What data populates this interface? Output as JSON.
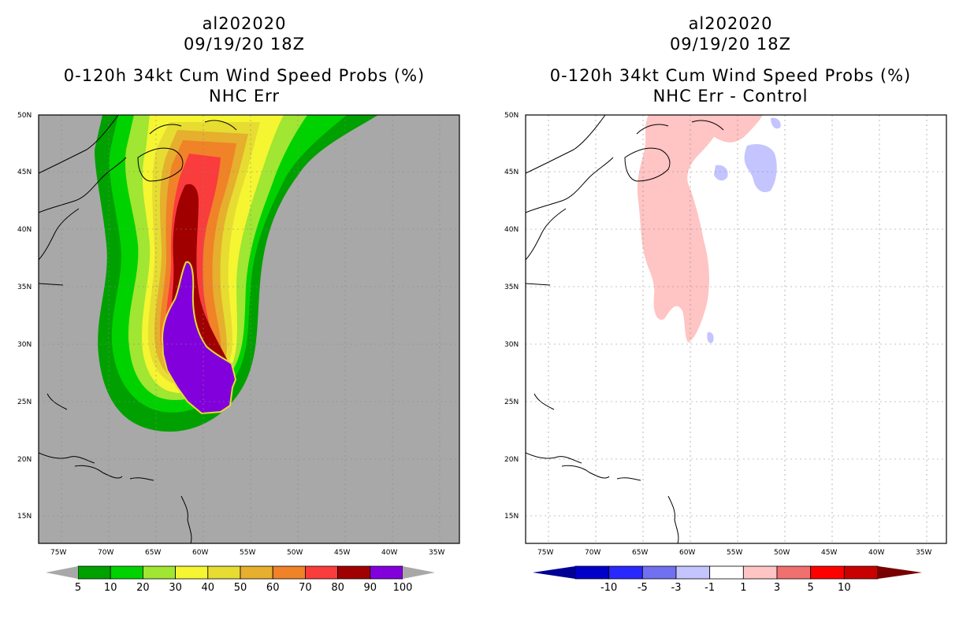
{
  "left_panel": {
    "storm_id": "al202020",
    "datetime": "09/19/20 18Z",
    "product": "0-120h 34kt Cum Wind Speed Probs (%)",
    "subtitle": "NHC Err",
    "background_color": "#a8a8a8",
    "colorbar": {
      "labels": [
        "5",
        "10",
        "20",
        "30",
        "40",
        "50",
        "60",
        "70",
        "80",
        "90",
        "100"
      ],
      "colors": [
        "#00a000",
        "#00d200",
        "#a0e632",
        "#f5f532",
        "#e6dc32",
        "#e6af2d",
        "#f08228",
        "#fa3c3c",
        "#a00000",
        "#8200dc"
      ],
      "end_color": "#a8a8a8"
    }
  },
  "right_panel": {
    "storm_id": "al202020",
    "datetime": "09/19/20 18Z",
    "product": "0-120h 34kt Cum Wind Speed Probs (%)",
    "subtitle": "NHC Err - Control",
    "colorbar": {
      "labels": [
        "-10",
        "-5",
        "-3",
        "-1",
        "1",
        "3",
        "5",
        "10"
      ],
      "colors": [
        "#0000c8",
        "#2828ff",
        "#7070f0",
        "#c4c4ff",
        "#ffffff",
        "#ffc4c4",
        "#f07070",
        "#ff0000",
        "#c80000"
      ],
      "low_end_color": "#000096",
      "high_end_color": "#780000"
    }
  },
  "axes": {
    "lat_labels": [
      "50N",
      "45N",
      "40N",
      "35N",
      "30N",
      "25N",
      "20N",
      "15N"
    ],
    "lon_labels": [
      "75W",
      "70W",
      "65W",
      "60W",
      "55W",
      "50W",
      "45W",
      "40W",
      "35W"
    ]
  }
}
